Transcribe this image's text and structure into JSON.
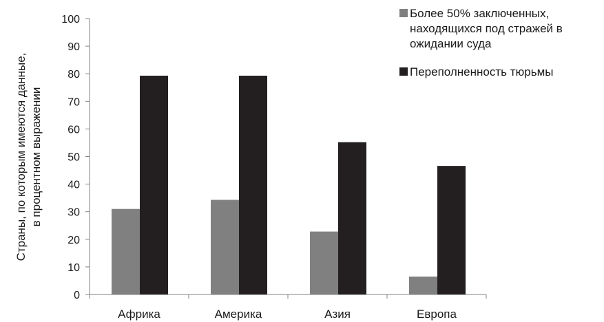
{
  "chart_data": {
    "type": "bar",
    "categories": [
      "Африка",
      "Америка",
      "Азия",
      "Европа"
    ],
    "series": [
      {
        "name": "Более 50% заключенных, находящихся под стражей в ожидании суда",
        "values": [
          31,
          34.3,
          22.8,
          6.5
        ],
        "color": "#808080"
      },
      {
        "name": "Переполненность тюрьмы",
        "values": [
          79.3,
          79.3,
          55.2,
          46.6
        ],
        "color": "#231f20"
      }
    ],
    "ylabel": [
      "Страны, по которым имеются данные,",
      "в процентном выражении"
    ],
    "ylim": [
      0,
      100
    ],
    "ytick_step": 10,
    "legend_position": "top-right",
    "legend_lines": [
      [
        "Более 50% заключенных,",
        "находящихся под стражей в",
        "ожидании суда"
      ],
      [
        "Переполненность тюрьмы"
      ]
    ],
    "grid": false
  }
}
